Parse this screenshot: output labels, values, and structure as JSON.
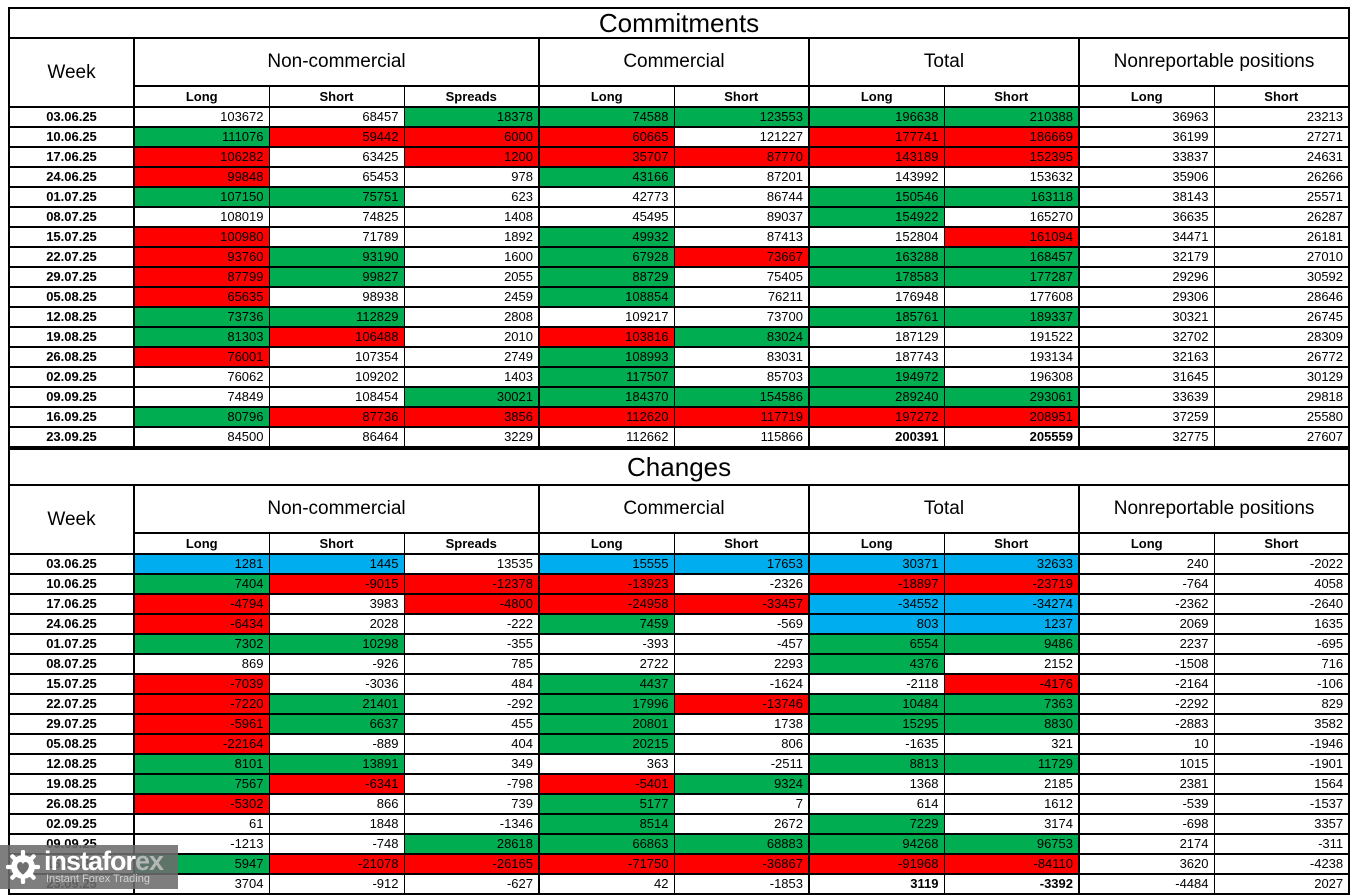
{
  "colors": {
    "g": "#00AD50",
    "r": "#FF0000",
    "b": "#00AEEF",
    "w": "#FFFFFF"
  },
  "watermark": {
    "brand_white": "instafor",
    "brand_gray": "ex",
    "tagline": "Instant Forex Trading"
  },
  "chart_data": [
    {
      "type": "table",
      "title": "Commitments",
      "header": {
        "week": "Week",
        "groups": [
          {
            "label": "Non-commercial",
            "span": 3
          },
          {
            "label": "Commercial",
            "span": 2
          },
          {
            "label": "Total",
            "span": 2
          },
          {
            "label": "Nonreportable positions",
            "span": 2
          }
        ],
        "subcolumns": [
          "Long",
          "Short",
          "Spreads",
          "Long",
          "Short",
          "Long",
          "Short",
          "Long",
          "Short"
        ]
      },
      "rows": [
        {
          "week": "03.06.25",
          "values": [
            103672,
            68457,
            18378,
            74588,
            123553,
            196638,
            210388,
            36963,
            23213
          ],
          "fills": [
            "w",
            "w",
            "g",
            "g",
            "g",
            "g",
            "g",
            "w",
            "w"
          ]
        },
        {
          "week": "10.06.25",
          "values": [
            111076,
            59442,
            6000,
            60665,
            121227,
            177741,
            186669,
            36199,
            27271
          ],
          "fills": [
            "g",
            "r",
            "r",
            "r",
            "w",
            "r",
            "r",
            "w",
            "w"
          ]
        },
        {
          "week": "17.06.25",
          "values": [
            106282,
            63425,
            1200,
            35707,
            87770,
            143189,
            152395,
            33837,
            24631
          ],
          "fills": [
            "r",
            "w",
            "r",
            "r",
            "r",
            "r",
            "r",
            "w",
            "w"
          ]
        },
        {
          "week": "24.06.25",
          "values": [
            99848,
            65453,
            978,
            43166,
            87201,
            143992,
            153632,
            35906,
            26266
          ],
          "fills": [
            "r",
            "w",
            "w",
            "g",
            "w",
            "w",
            "w",
            "w",
            "w"
          ]
        },
        {
          "week": "01.07.25",
          "values": [
            107150,
            75751,
            623,
            42773,
            86744,
            150546,
            163118,
            38143,
            25571
          ],
          "fills": [
            "g",
            "g",
            "w",
            "w",
            "w",
            "g",
            "g",
            "w",
            "w"
          ]
        },
        {
          "week": "08.07.25",
          "values": [
            108019,
            74825,
            1408,
            45495,
            89037,
            154922,
            165270,
            36635,
            26287
          ],
          "fills": [
            "w",
            "w",
            "w",
            "w",
            "w",
            "g",
            "w",
            "w",
            "w"
          ]
        },
        {
          "week": "15.07.25",
          "values": [
            100980,
            71789,
            1892,
            49932,
            87413,
            152804,
            161094,
            34471,
            26181
          ],
          "fills": [
            "r",
            "w",
            "w",
            "g",
            "w",
            "w",
            "r",
            "w",
            "w"
          ]
        },
        {
          "week": "22.07.25",
          "values": [
            93760,
            93190,
            1600,
            67928,
            73667,
            163288,
            168457,
            32179,
            27010
          ],
          "fills": [
            "r",
            "g",
            "w",
            "g",
            "r",
            "g",
            "g",
            "w",
            "w"
          ]
        },
        {
          "week": "29.07.25",
          "values": [
            87799,
            99827,
            2055,
            88729,
            75405,
            178583,
            177287,
            29296,
            30592
          ],
          "fills": [
            "r",
            "g",
            "w",
            "g",
            "w",
            "g",
            "g",
            "w",
            "w"
          ]
        },
        {
          "week": "05.08.25",
          "values": [
            65635,
            98938,
            2459,
            108854,
            76211,
            176948,
            177608,
            29306,
            28646
          ],
          "fills": [
            "r",
            "w",
            "w",
            "g",
            "w",
            "w",
            "w",
            "w",
            "w"
          ]
        },
        {
          "week": "12.08.25",
          "values": [
            73736,
            112829,
            2808,
            109217,
            73700,
            185761,
            189337,
            30321,
            26745
          ],
          "fills": [
            "g",
            "g",
            "w",
            "w",
            "w",
            "g",
            "g",
            "w",
            "w"
          ]
        },
        {
          "week": "19.08.25",
          "values": [
            81303,
            106488,
            2010,
            103816,
            83024,
            187129,
            191522,
            32702,
            28309
          ],
          "fills": [
            "g",
            "r",
            "w",
            "r",
            "g",
            "w",
            "w",
            "w",
            "w"
          ]
        },
        {
          "week": "26.08.25",
          "values": [
            76001,
            107354,
            2749,
            108993,
            83031,
            187743,
            193134,
            32163,
            26772
          ],
          "fills": [
            "r",
            "w",
            "w",
            "g",
            "w",
            "w",
            "w",
            "w",
            "w"
          ]
        },
        {
          "week": "02.09.25",
          "values": [
            76062,
            109202,
            1403,
            117507,
            85703,
            194972,
            196308,
            31645,
            30129
          ],
          "fills": [
            "w",
            "w",
            "w",
            "g",
            "w",
            "g",
            "w",
            "w",
            "w"
          ]
        },
        {
          "week": "09.09.25",
          "values": [
            74849,
            108454,
            30021,
            184370,
            154586,
            289240,
            293061,
            33639,
            29818
          ],
          "fills": [
            "w",
            "w",
            "g",
            "g",
            "g",
            "g",
            "g",
            "w",
            "w"
          ]
        },
        {
          "week": "16.09.25",
          "values": [
            80796,
            87736,
            3856,
            112620,
            117719,
            197272,
            208951,
            37259,
            25580
          ],
          "fills": [
            "g",
            "r",
            "r",
            "r",
            "r",
            "r",
            "r",
            "w",
            "w"
          ]
        },
        {
          "week": "23.09.25",
          "values": [
            84500,
            86464,
            3229,
            112662,
            115866,
            200391,
            205559,
            32775,
            27607
          ],
          "fills": [
            "w",
            "w",
            "w",
            "w",
            "w",
            "w",
            "w",
            "w",
            "w"
          ],
          "bold": [
            5,
            6
          ]
        }
      ]
    },
    {
      "type": "table",
      "title": "Changes",
      "header": {
        "week": "Week",
        "groups": [
          {
            "label": "Non-commercial",
            "span": 3
          },
          {
            "label": "Commercial",
            "span": 2
          },
          {
            "label": "Total",
            "span": 2
          },
          {
            "label": "Nonreportable positions",
            "span": 2
          }
        ],
        "subcolumns": [
          "Long",
          "Short",
          "Spreads",
          "Long",
          "Short",
          "Long",
          "Short",
          "Long",
          "Short"
        ]
      },
      "rows": [
        {
          "week": "03.06.25",
          "values": [
            1281,
            1445,
            13535,
            15555,
            17653,
            30371,
            32633,
            240,
            -2022
          ],
          "fills": [
            "b",
            "b",
            "w",
            "b",
            "b",
            "b",
            "b",
            "w",
            "w"
          ]
        },
        {
          "week": "10.06.25",
          "values": [
            7404,
            -9015,
            -12378,
            -13923,
            -2326,
            -18897,
            -23719,
            -764,
            4058
          ],
          "fills": [
            "g",
            "r",
            "r",
            "r",
            "w",
            "r",
            "r",
            "w",
            "w"
          ]
        },
        {
          "week": "17.06.25",
          "values": [
            -4794,
            3983,
            -4800,
            -24958,
            -33457,
            -34552,
            -34274,
            -2362,
            -2640
          ],
          "fills": [
            "r",
            "w",
            "r",
            "r",
            "r",
            "b",
            "b",
            "w",
            "w"
          ]
        },
        {
          "week": "24.06.25",
          "values": [
            -6434,
            2028,
            -222,
            7459,
            -569,
            803,
            1237,
            2069,
            1635
          ],
          "fills": [
            "r",
            "w",
            "w",
            "g",
            "w",
            "b",
            "b",
            "w",
            "w"
          ]
        },
        {
          "week": "01.07.25",
          "values": [
            7302,
            10298,
            -355,
            -393,
            -457,
            6554,
            9486,
            2237,
            -695
          ],
          "fills": [
            "g",
            "g",
            "w",
            "w",
            "w",
            "g",
            "g",
            "w",
            "w"
          ]
        },
        {
          "week": "08.07.25",
          "values": [
            869,
            -926,
            785,
            2722,
            2293,
            4376,
            2152,
            -1508,
            716
          ],
          "fills": [
            "w",
            "w",
            "w",
            "w",
            "w",
            "g",
            "w",
            "w",
            "w"
          ]
        },
        {
          "week": "15.07.25",
          "values": [
            -7039,
            -3036,
            484,
            4437,
            -1624,
            -2118,
            -4176,
            -2164,
            -106
          ],
          "fills": [
            "r",
            "w",
            "w",
            "g",
            "w",
            "w",
            "r",
            "w",
            "w"
          ]
        },
        {
          "week": "22.07.25",
          "values": [
            -7220,
            21401,
            -292,
            17996,
            -13746,
            10484,
            7363,
            -2292,
            829
          ],
          "fills": [
            "r",
            "g",
            "w",
            "g",
            "r",
            "g",
            "g",
            "w",
            "w"
          ]
        },
        {
          "week": "29.07.25",
          "values": [
            -5961,
            6637,
            455,
            20801,
            1738,
            15295,
            8830,
            -2883,
            3582
          ],
          "fills": [
            "r",
            "g",
            "w",
            "g",
            "w",
            "g",
            "g",
            "w",
            "w"
          ]
        },
        {
          "week": "05.08.25",
          "values": [
            -22164,
            -889,
            404,
            20215,
            806,
            -1635,
            321,
            10,
            -1946
          ],
          "fills": [
            "r",
            "w",
            "w",
            "g",
            "w",
            "w",
            "w",
            "w",
            "w"
          ]
        },
        {
          "week": "12.08.25",
          "values": [
            8101,
            13891,
            349,
            363,
            -2511,
            8813,
            11729,
            1015,
            -1901
          ],
          "fills": [
            "g",
            "g",
            "w",
            "w",
            "w",
            "g",
            "g",
            "w",
            "w"
          ]
        },
        {
          "week": "19.08.25",
          "values": [
            7567,
            -6341,
            -798,
            -5401,
            9324,
            1368,
            2185,
            2381,
            1564
          ],
          "fills": [
            "g",
            "r",
            "w",
            "r",
            "g",
            "w",
            "w",
            "w",
            "w"
          ]
        },
        {
          "week": "26.08.25",
          "values": [
            -5302,
            866,
            739,
            5177,
            7,
            614,
            1612,
            -539,
            -1537
          ],
          "fills": [
            "r",
            "w",
            "w",
            "g",
            "w",
            "w",
            "w",
            "w",
            "w"
          ]
        },
        {
          "week": "02.09.25",
          "values": [
            61,
            1848,
            -1346,
            8514,
            2672,
            7229,
            3174,
            -698,
            3357
          ],
          "fills": [
            "w",
            "w",
            "w",
            "g",
            "w",
            "g",
            "w",
            "w",
            "w"
          ]
        },
        {
          "week": "09.09.25",
          "values": [
            -1213,
            -748,
            28618,
            66863,
            68883,
            94268,
            96753,
            2174,
            -311
          ],
          "fills": [
            "w",
            "w",
            "g",
            "g",
            "g",
            "g",
            "g",
            "w",
            "w"
          ]
        },
        {
          "week": "16.09.25",
          "values": [
            5947,
            -21078,
            -26165,
            -71750,
            -36867,
            -91968,
            -84110,
            3620,
            -4238
          ],
          "fills": [
            "g",
            "r",
            "r",
            "r",
            "r",
            "r",
            "r",
            "w",
            "w"
          ]
        },
        {
          "week": "23.09.25",
          "values": [
            3704,
            -912,
            -627,
            42,
            -1853,
            3119,
            -3392,
            -4484,
            2027
          ],
          "fills": [
            "w",
            "w",
            "w",
            "w",
            "w",
            "w",
            "w",
            "w",
            "w"
          ],
          "bold": [
            5,
            6
          ]
        }
      ]
    }
  ]
}
